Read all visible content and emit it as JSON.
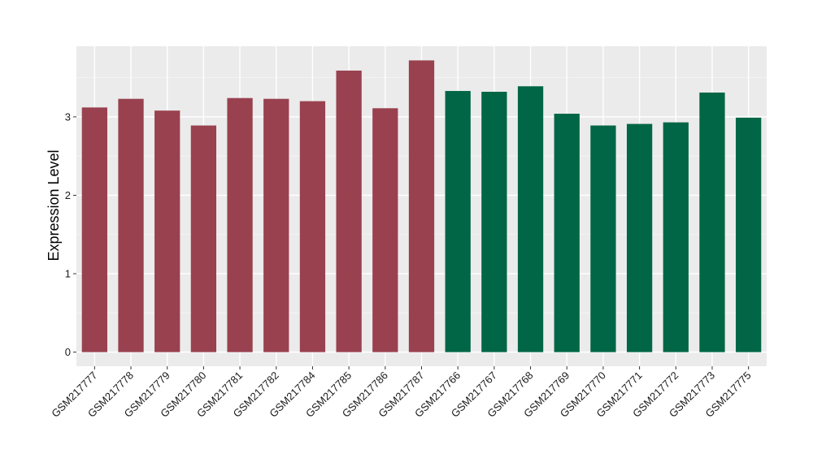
{
  "chart_data": {
    "type": "bar",
    "title": "",
    "xlabel": "",
    "ylabel": "Expression Level",
    "ylim": [
      -0.18,
      3.9
    ],
    "yticks": [
      0,
      1,
      2,
      3
    ],
    "grid": true,
    "legend": "none",
    "categories": [
      "GSM217777",
      "GSM217778",
      "GSM217779",
      "GSM217780",
      "GSM217781",
      "GSM217782",
      "GSM217784",
      "GSM217785",
      "GSM217786",
      "GSM217787",
      "GSM217766",
      "GSM217767",
      "GSM217768",
      "GSM217769",
      "GSM217770",
      "GSM217771",
      "GSM217772",
      "GSM217773",
      "GSM217775"
    ],
    "values": [
      3.12,
      3.23,
      3.08,
      2.89,
      3.24,
      3.23,
      3.2,
      3.59,
      3.11,
      3.72,
      3.33,
      3.32,
      3.39,
      3.04,
      2.89,
      2.91,
      2.93,
      3.31,
      2.99
    ],
    "group": [
      0,
      0,
      0,
      0,
      0,
      0,
      0,
      0,
      0,
      0,
      1,
      1,
      1,
      1,
      1,
      1,
      1,
      1,
      1
    ],
    "colors": [
      "#99414f",
      "#006645"
    ]
  }
}
